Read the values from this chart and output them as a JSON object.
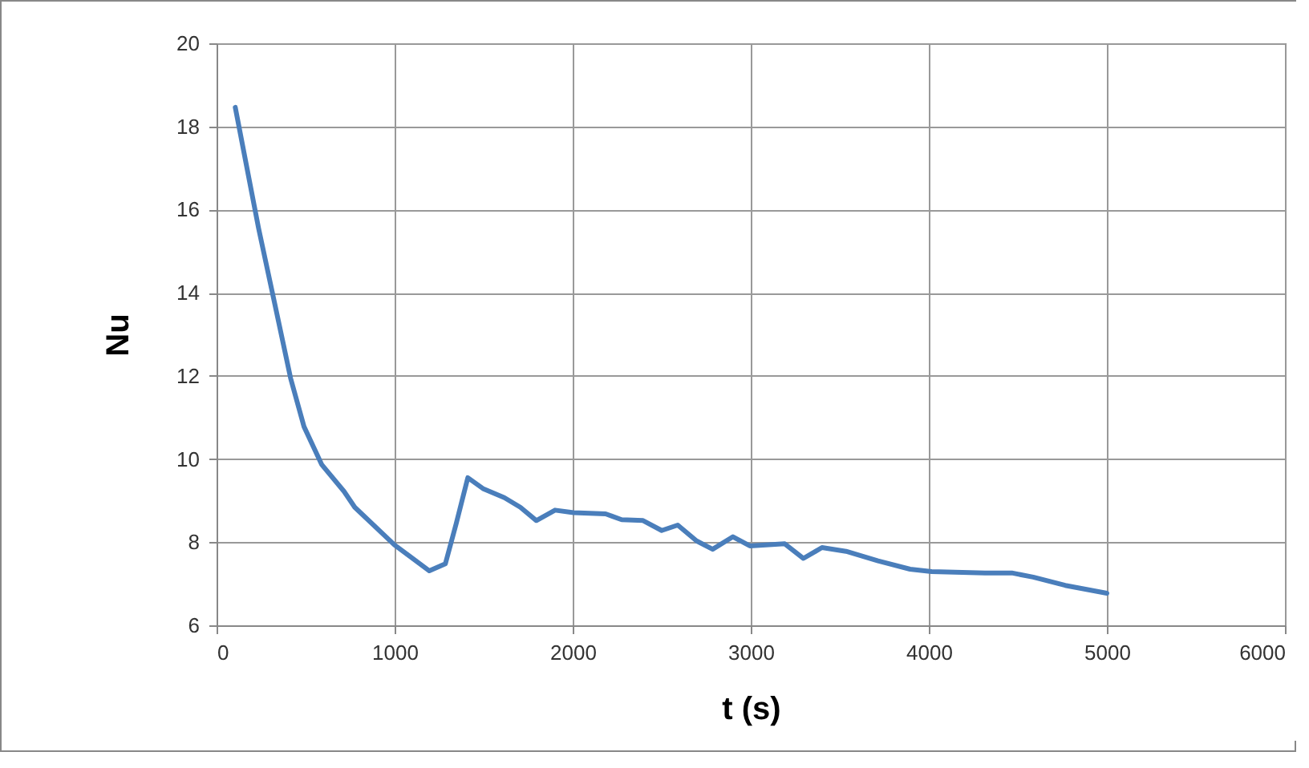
{
  "chart_data": {
    "type": "line",
    "xlabel": "t (s)",
    "ylabel": "Nu",
    "xlim": [
      0,
      6000
    ],
    "ylim": [
      6,
      20
    ],
    "xticks": [
      0,
      1000,
      2000,
      3000,
      4000,
      5000,
      6000
    ],
    "yticks": [
      6,
      8,
      10,
      12,
      14,
      16,
      18,
      20
    ],
    "grid": true,
    "legend": false,
    "marker": "none",
    "line_style": "solid",
    "series": [
      {
        "color": "#4a7ebb",
        "x": [
          105,
          236,
          326,
          416,
          491,
          590,
          716,
          776,
          1000,
          1195,
          1285,
          1346,
          1411,
          1496,
          1616,
          1706,
          1796,
          1901,
          2005,
          2185,
          2275,
          2395,
          2500,
          2590,
          2696,
          2786,
          2900,
          2995,
          3191,
          3296,
          3400,
          3535,
          3715,
          3895,
          4016,
          4316,
          4466,
          4586,
          4766,
          5000
        ],
        "values": [
          18.46,
          15.55,
          13.75,
          11.94,
          10.78,
          9.87,
          9.22,
          8.84,
          7.93,
          7.31,
          7.48,
          8.45,
          9.55,
          9.29,
          9.07,
          8.84,
          8.52,
          8.77,
          8.71,
          8.68,
          8.54,
          8.52,
          8.28,
          8.41,
          8.03,
          7.83,
          8.13,
          7.91,
          7.96,
          7.61,
          7.87,
          7.78,
          7.55,
          7.35,
          7.29,
          7.26,
          7.26,
          7.16,
          6.96,
          6.77
        ]
      }
    ]
  }
}
